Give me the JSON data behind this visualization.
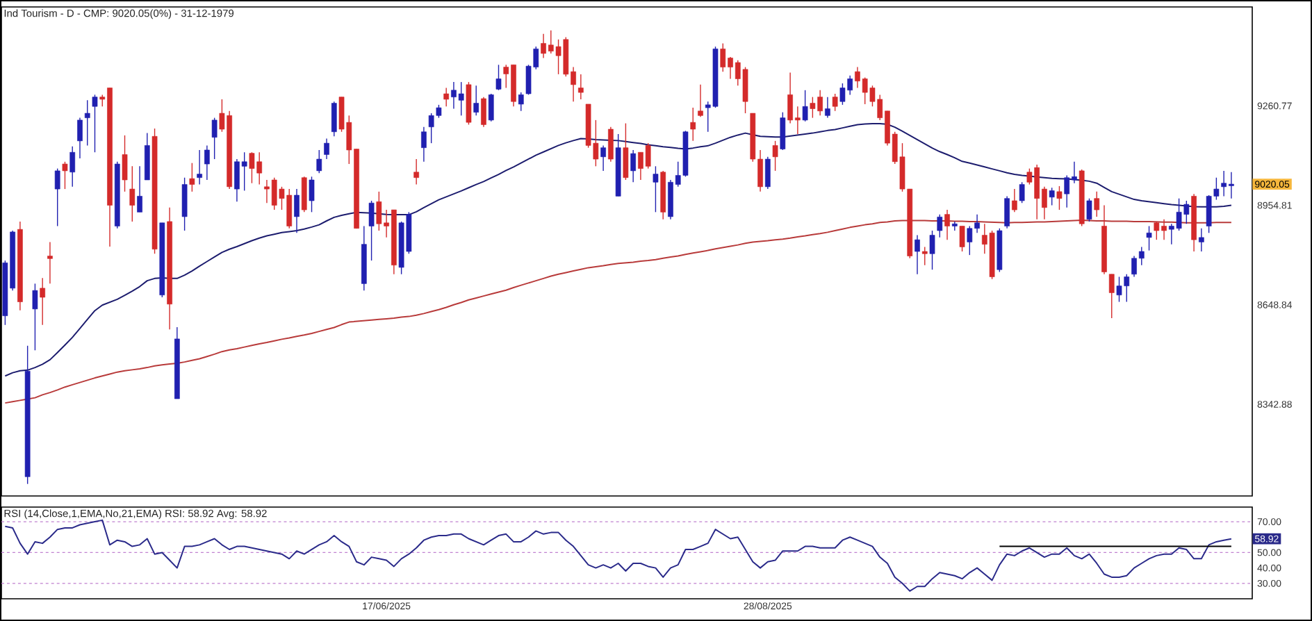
{
  "chart_data": [
    {
      "type": "candlestick",
      "title": "Ind Tourism - D - CMP: 9020.05(0%) - 31-12-1979",
      "categories": [
        null,
        null,
        null,
        null,
        null,
        null,
        null,
        null,
        null,
        null,
        null,
        null,
        null,
        null,
        null,
        null,
        null,
        null,
        null,
        null,
        null,
        null,
        null,
        null,
        null,
        null,
        null,
        null,
        null,
        null,
        null,
        null,
        null,
        null,
        null,
        null,
        null,
        null,
        null,
        null,
        null,
        null,
        null,
        null,
        null,
        null,
        null,
        null,
        null,
        null,
        null,
        null,
        null,
        null,
        null,
        null,
        null,
        null,
        null,
        null,
        null,
        null,
        null,
        null,
        null,
        null,
        null,
        null,
        null,
        null,
        null,
        null,
        null,
        null,
        null,
        null,
        null,
        null,
        null,
        null,
        null,
        null,
        null,
        null,
        null,
        null,
        null,
        null,
        null,
        null,
        null,
        null,
        null,
        null,
        null,
        null,
        null,
        null,
        null,
        null,
        null,
        null,
        null,
        null,
        null,
        null,
        null,
        null,
        null,
        null,
        null,
        null,
        null,
        null,
        null,
        null,
        null,
        null,
        null,
        null,
        null,
        null,
        null,
        null,
        null,
        null,
        null,
        null,
        null,
        null,
        null,
        null,
        null,
        null,
        null,
        null,
        null,
        null,
        null,
        null,
        null,
        null,
        null,
        null,
        null,
        null,
        null,
        null,
        null,
        null,
        null,
        null,
        null,
        null,
        null,
        null,
        null,
        null,
        null,
        null,
        null,
        null,
        null,
        null,
        null
      ],
      "ohlc": [
        [
          8615,
          8785,
          8587,
          8778
        ],
        [
          8700,
          8877,
          8693,
          8873
        ],
        [
          8881,
          8905,
          8632,
          8658
        ],
        [
          8120,
          8523,
          8098,
          8445
        ],
        [
          8636,
          8714,
          8509,
          8693
        ],
        [
          8700,
          8731,
          8587,
          8672
        ],
        [
          8799,
          8842,
          8714,
          8791
        ],
        [
          9005,
          9068,
          8891,
          9061
        ],
        [
          9082,
          9089,
          9005,
          9061
        ],
        [
          9057,
          9136,
          9012,
          9118
        ],
        [
          9153,
          9224,
          9099,
          9217
        ],
        [
          9224,
          9278,
          9139,
          9238
        ],
        [
          9259,
          9295,
          9118,
          9288
        ],
        [
          9288,
          9295,
          9259,
          9281
        ],
        [
          9316,
          9316,
          8828,
          8955
        ],
        [
          8891,
          9089,
          8884,
          9082
        ],
        [
          9111,
          9170,
          8997,
          9033
        ],
        [
          9005,
          9075,
          8905,
          8955
        ],
        [
          8934,
          9075,
          8934,
          8983
        ],
        [
          9033,
          9177,
          9033,
          9139
        ],
        [
          9167,
          9191,
          8806,
          8820
        ],
        [
          8679,
          8901,
          8672,
          8901
        ],
        [
          8905,
          8948,
          8573,
          8651
        ],
        [
          8360,
          8580,
          8360,
          8544
        ],
        [
          8920,
          9040,
          8877,
          9019
        ],
        [
          9037,
          9085,
          8997,
          9019
        ],
        [
          9040,
          9125,
          9019,
          9051
        ],
        [
          9082,
          9139,
          9033,
          9125
        ],
        [
          9164,
          9224,
          9097,
          9217
        ],
        [
          9238,
          9281,
          9181,
          9189
        ],
        [
          9231,
          9245,
          9005,
          9012
        ],
        [
          9005,
          9097,
          8966,
          9089
        ],
        [
          9075,
          9118,
          9000,
          9089
        ],
        [
          9115,
          9118,
          9023,
          9068
        ],
        [
          9089,
          9118,
          9019,
          9054
        ],
        [
          9012,
          9033,
          8962,
          9005
        ],
        [
          9033,
          9040,
          8941,
          8955
        ],
        [
          9005,
          9012,
          8941,
          8976
        ],
        [
          8986,
          9005,
          8884,
          8891
        ],
        [
          8920,
          9005,
          8870,
          8986
        ],
        [
          9040,
          9043,
          8934,
          8941
        ],
        [
          8969,
          9043,
          8934,
          9033
        ],
        [
          9061,
          9125,
          9054,
          9097
        ],
        [
          9111,
          9160,
          9097,
          9146
        ],
        [
          9181,
          9274,
          9167,
          9269
        ],
        [
          9288,
          9288,
          9181,
          9189
        ],
        [
          9210,
          9231,
          9082,
          9125
        ],
        [
          9128,
          9128,
          8884,
          8884
        ],
        [
          8714,
          8891,
          8693,
          8835
        ],
        [
          8891,
          8969,
          8785,
          8962
        ],
        [
          8966,
          8997,
          8877,
          8898
        ],
        [
          8901,
          8941,
          8856,
          8891
        ],
        [
          8941,
          8941,
          8743,
          8771
        ],
        [
          8764,
          8905,
          8743,
          8901
        ],
        [
          8813,
          8934,
          8806,
          8927
        ],
        [
          9057,
          9097,
          9019,
          9040
        ],
        [
          9132,
          9196,
          9089,
          9181
        ],
        [
          9196,
          9238,
          9146,
          9231
        ],
        [
          9231,
          9264,
          9224,
          9255
        ],
        [
          9298,
          9316,
          9259,
          9281
        ],
        [
          9288,
          9334,
          9252,
          9309
        ],
        [
          9278,
          9334,
          9231,
          9298
        ],
        [
          9326,
          9334,
          9203,
          9210
        ],
        [
          9241,
          9323,
          9231,
          9269
        ],
        [
          9283,
          9288,
          9196,
          9203
        ],
        [
          9217,
          9298,
          9213,
          9295
        ],
        [
          9312,
          9387,
          9309,
          9344
        ],
        [
          9380,
          9387,
          9316,
          9359
        ],
        [
          9387,
          9387,
          9259,
          9274
        ],
        [
          9266,
          9302,
          9245,
          9295
        ],
        [
          9298,
          9387,
          9295,
          9383
        ],
        [
          9380,
          9443,
          9373,
          9436
        ],
        [
          9453,
          9482,
          9408,
          9422
        ],
        [
          9448,
          9493,
          9422,
          9429
        ],
        [
          9443,
          9465,
          9358,
          9415
        ],
        [
          9465,
          9472,
          9351,
          9358
        ],
        [
          9366,
          9380,
          9274,
          9326
        ],
        [
          9316,
          9358,
          9281,
          9302
        ],
        [
          9266,
          9266,
          9132,
          9139
        ],
        [
          9146,
          9217,
          9075,
          9097
        ],
        [
          9104,
          9139,
          9061,
          9132
        ],
        [
          9189,
          9196,
          9089,
          9097
        ],
        [
          8983,
          9174,
          8983,
          9132
        ],
        [
          9132,
          9207,
          9033,
          9040
        ],
        [
          9061,
          9125,
          9026,
          9114
        ],
        [
          9118,
          9118,
          9033,
          9068
        ],
        [
          9139,
          9146,
          9068,
          9075
        ],
        [
          9026,
          9075,
          8934,
          9051
        ],
        [
          9057,
          9061,
          8912,
          8934
        ],
        [
          8920,
          9033,
          8912,
          9026
        ],
        [
          9019,
          9089,
          9012,
          9047
        ],
        [
          9047,
          9184,
          9043,
          9181
        ],
        [
          9210,
          9255,
          9153,
          9189
        ],
        [
          9245,
          9326,
          9227,
          9231
        ],
        [
          9255,
          9274,
          9181,
          9264
        ],
        [
          9259,
          9443,
          9255,
          9436
        ],
        [
          9436,
          9453,
          9366,
          9380
        ],
        [
          9408,
          9411,
          9344,
          9380
        ],
        [
          9394,
          9401,
          9323,
          9344
        ],
        [
          9373,
          9380,
          9238,
          9274
        ],
        [
          9238,
          9238,
          9089,
          9097
        ],
        [
          9097,
          9125,
          8997,
          9012
        ],
        [
          9012,
          9104,
          9005,
          9097
        ],
        [
          9139,
          9153,
          9061,
          9104
        ],
        [
          9128,
          9241,
          9125,
          9224
        ],
        [
          9295,
          9363,
          9207,
          9217
        ],
        [
          9224,
          9259,
          9174,
          9217
        ],
        [
          9217,
          9309,
          9213,
          9259
        ],
        [
          9269,
          9288,
          9224,
          9252
        ],
        [
          9288,
          9309,
          9231,
          9245
        ],
        [
          9231,
          9288,
          9224,
          9252
        ],
        [
          9288,
          9298,
          9245,
          9259
        ],
        [
          9274,
          9330,
          9264,
          9316
        ],
        [
          9309,
          9354,
          9295,
          9344
        ],
        [
          9366,
          9380,
          9316,
          9337
        ],
        [
          9344,
          9348,
          9266,
          9302
        ],
        [
          9316,
          9323,
          9259,
          9274
        ],
        [
          9281,
          9295,
          9217,
          9224
        ],
        [
          9245,
          9245,
          9139,
          9146
        ],
        [
          9174,
          9181,
          9082,
          9089
        ],
        [
          9104,
          9146,
          8997,
          9005
        ],
        [
          9005,
          9005,
          8792,
          8799
        ],
        [
          8813,
          8863,
          8743,
          8849
        ],
        [
          8813,
          8827,
          8771,
          8806
        ],
        [
          8806,
          8877,
          8757,
          8863
        ],
        [
          8877,
          8927,
          8856,
          8919
        ],
        [
          8927,
          8941,
          8849,
          8891
        ],
        [
          8891,
          8905,
          8877,
          8898
        ],
        [
          8891,
          8891,
          8813,
          8827
        ],
        [
          8842,
          8891,
          8802,
          8884
        ],
        [
          8884,
          8927,
          8870,
          8901
        ],
        [
          8863,
          8898,
          8806,
          8835
        ],
        [
          8870,
          8877,
          8728,
          8735
        ],
        [
          8757,
          8884,
          8750,
          8877
        ],
        [
          8891,
          8983,
          8884,
          8976
        ],
        [
          8969,
          9005,
          8934,
          8941
        ],
        [
          8969,
          9026,
          8962,
          9019
        ],
        [
          9057,
          9068,
          9019,
          9026
        ],
        [
          9071,
          9080,
          8912,
          8976
        ],
        [
          9005,
          9012,
          8912,
          8948
        ],
        [
          8980,
          9009,
          8955,
          9000
        ],
        [
          8997,
          9014,
          8941,
          8976
        ],
        [
          8990,
          9047,
          8948,
          9040
        ],
        [
          9033,
          9089,
          9023,
          9043
        ],
        [
          9061,
          9065,
          8891,
          8898
        ],
        [
          8912,
          8976,
          8905,
          8969
        ],
        [
          8976,
          8997,
          8920,
          8941
        ],
        [
          8891,
          8955,
          8743,
          8750
        ],
        [
          8743,
          8743,
          8608,
          8686
        ],
        [
          8679,
          8735,
          8658,
          8707
        ],
        [
          8707,
          8743,
          8658,
          8735
        ],
        [
          8743,
          8799,
          8735,
          8792
        ],
        [
          8792,
          8827,
          8771,
          8813
        ],
        [
          8856,
          8891,
          8816,
          8870
        ],
        [
          8901,
          8905,
          8849,
          8877
        ],
        [
          8891,
          8912,
          8849,
          8877
        ],
        [
          8881,
          8898,
          8835,
          8891
        ],
        [
          8884,
          8976,
          8877,
          8934
        ],
        [
          8927,
          8969,
          8898,
          8958
        ],
        [
          8983,
          8990,
          8813,
          8849
        ],
        [
          8842,
          8884,
          8813,
          8856
        ],
        [
          8891,
          8986,
          8870,
          8983
        ],
        [
          8983,
          9040,
          8972,
          9005
        ],
        [
          9012,
          9061,
          8983,
          9023
        ],
        [
          9015,
          9057,
          8976,
          9020.05
        ]
      ],
      "colors": [
        "#2020b0",
        "#2020b0",
        "#d42a2a",
        "#2020b0",
        "#2020b0",
        "#d42a2a",
        "#d42a2a",
        "#2020b0",
        "#d42a2a",
        "#2020b0",
        "#2020b0",
        "#2020b0",
        "#2020b0",
        "#d42a2a",
        "#d42a2a",
        "#2020b0",
        "#d42a2a",
        "#d42a2a",
        "#2020b0",
        "#2020b0",
        "#d42a2a",
        "#2020b0",
        "#d42a2a",
        "#2020b0",
        "#2020b0",
        "#d42a2a",
        "#2020b0",
        "#2020b0",
        "#2020b0",
        "#d42a2a",
        "#d42a2a",
        "#2020b0",
        "#2020b0",
        "#d42a2a",
        "#d42a2a",
        "#d42a2a",
        "#d42a2a",
        "#d42a2a",
        "#d42a2a",
        "#2020b0",
        "#d42a2a",
        "#2020b0",
        "#2020b0",
        "#2020b0",
        "#2020b0",
        "#d42a2a",
        "#d42a2a",
        "#d42a2a",
        "#2020b0",
        "#2020b0",
        "#d42a2a",
        "#d42a2a",
        "#d42a2a",
        "#2020b0",
        "#2020b0",
        "#d42a2a",
        "#2020b0",
        "#2020b0",
        "#2020b0",
        "#d42a2a",
        "#2020b0",
        "#2020b0",
        "#d42a2a",
        "#2020b0",
        "#d42a2a",
        "#2020b0",
        "#2020b0",
        "#d42a2a",
        "#d42a2a",
        "#2020b0",
        "#2020b0",
        "#2020b0",
        "#d42a2a",
        "#d42a2a",
        "#d42a2a",
        "#d42a2a",
        "#d42a2a",
        "#d42a2a",
        "#d42a2a",
        "#d42a2a",
        "#2020b0",
        "#d42a2a",
        "#2020b0",
        "#d42a2a",
        "#2020b0",
        "#d42a2a",
        "#d42a2a",
        "#2020b0",
        "#d42a2a",
        "#2020b0",
        "#2020b0",
        "#2020b0",
        "#d42a2a",
        "#d42a2a",
        "#2020b0",
        "#2020b0",
        "#d42a2a",
        "#d42a2a",
        "#d42a2a",
        "#d42a2a",
        "#d42a2a",
        "#d42a2a",
        "#2020b0",
        "#d42a2a",
        "#2020b0",
        "#d42a2a",
        "#d42a2a",
        "#2020b0",
        "#d42a2a",
        "#d42a2a",
        "#2020b0",
        "#d42a2a",
        "#2020b0",
        "#2020b0",
        "#d42a2a",
        "#d42a2a",
        "#d42a2a",
        "#d42a2a",
        "#d42a2a",
        "#d42a2a",
        "#d42a2a",
        "#d42a2a",
        "#2020b0",
        "#d42a2a",
        "#2020b0",
        "#2020b0",
        "#d42a2a",
        "#2020b0",
        "#d42a2a",
        "#2020b0",
        "#2020b0",
        "#d42a2a",
        "#d42a2a",
        "#2020b0",
        "#2020b0",
        "#d42a2a",
        "#2020b0",
        "#d42a2a",
        "#d42a2a",
        "#d42a2a",
        "#2020b0",
        "#d42a2a",
        "#2020b0",
        "#2020b0",
        "#d42a2a",
        "#2020b0",
        "#d42a2a",
        "#d42a2a",
        "#d42a2a",
        "#2020b0",
        "#2020b0",
        "#2020b0",
        "#2020b0",
        "#2020b0",
        "#d42a2a",
        "#d42a2a",
        "#2020b0",
        "#2020b0",
        "#2020b0",
        "#d42a2a",
        "#2020b0",
        "#2020b0",
        "#2020b0",
        "#2020b0",
        "#2020b0"
      ],
      "series": [
        {
          "type": "line",
          "color": "#1c1c6e",
          "values": [
            8430,
            8440,
            8446,
            8448,
            8456,
            8466,
            8480,
            8502,
            8525,
            8549,
            8576,
            8604,
            8631,
            8648,
            8657,
            8666,
            8678,
            8691,
            8705,
            8723,
            8730,
            8732,
            8730,
            8730,
            8740,
            8753,
            8768,
            8782,
            8796,
            8810,
            8820,
            8828,
            8837,
            8846,
            8854,
            8861,
            8866,
            8871,
            8874,
            8877,
            8882,
            8888,
            8895,
            8907,
            8918,
            8924,
            8929,
            8933,
            8932,
            8931,
            8929,
            8927,
            8926,
            8926,
            8926,
            8935,
            8948,
            8960,
            8972,
            8981,
            8990,
            8999,
            9009,
            9019,
            9028,
            9039,
            9050,
            9062,
            9073,
            9085,
            9097,
            9109,
            9119,
            9129,
            9139,
            9147,
            9154,
            9160,
            9159,
            9157,
            9156,
            9155,
            9154,
            9151,
            9148,
            9145,
            9141,
            9138,
            9135,
            9133,
            9130,
            9128,
            9131,
            9135,
            9138,
            9146,
            9155,
            9164,
            9171,
            9177,
            9172,
            9167,
            9166,
            9165,
            9165,
            9168,
            9171,
            9174,
            9177,
            9181,
            9185,
            9188,
            9193,
            9198,
            9203,
            9205,
            9206,
            9206,
            9204,
            9195,
            9183,
            9170,
            9157,
            9144,
            9131,
            9120,
            9111,
            9101,
            9090,
            9085,
            9079,
            9073,
            9067,
            9061,
            9055,
            9050,
            9047,
            9045,
            9042,
            9040,
            9038,
            9037,
            9036,
            9034,
            9032,
            9029,
            9023,
            9010,
            8997,
            8989,
            8981,
            8973,
            8969,
            8966,
            8963,
            8960,
            8957,
            8955,
            8953,
            8951,
            8950,
            8950,
            8950,
            8952,
            8955
          ]
        },
        {
          "type": "line",
          "color": "#b83a3a",
          "values": [
            8347,
            8351,
            8355,
            8359,
            8363,
            8372,
            8379,
            8387,
            8396,
            8403,
            8410,
            8417,
            8424,
            8430,
            8436,
            8442,
            8446,
            8449,
            8452,
            8456,
            8461,
            8464,
            8467,
            8469,
            8473,
            8478,
            8483,
            8490,
            8497,
            8505,
            8510,
            8514,
            8519,
            8524,
            8529,
            8533,
            8538,
            8543,
            8547,
            8552,
            8556,
            8561,
            8567,
            8573,
            8579,
            8588,
            8596,
            8598,
            8600,
            8602,
            8604,
            8606,
            8608,
            8611,
            8613,
            8617,
            8622,
            8628,
            8634,
            8641,
            8649,
            8656,
            8664,
            8670,
            8676,
            8682,
            8688,
            8694,
            8702,
            8709,
            8716,
            8723,
            8730,
            8737,
            8743,
            8748,
            8753,
            8758,
            8763,
            8766,
            8769,
            8773,
            8776,
            8778,
            8780,
            8783,
            8785,
            8788,
            8792,
            8796,
            8799,
            8804,
            8808,
            8812,
            8816,
            8821,
            8825,
            8829,
            8833,
            8838,
            8842,
            8844,
            8846,
            8849,
            8851,
            8854,
            8858,
            8861,
            8865,
            8868,
            8872,
            8877,
            8882,
            8887,
            8891,
            8895,
            8898,
            8902,
            8904,
            8907,
            8908,
            8908,
            8908,
            8908,
            8907,
            8907,
            8907,
            8906,
            8906,
            8905,
            8905,
            8904,
            8903,
            8902,
            8901,
            8902,
            8902,
            8903,
            8904,
            8904,
            8905,
            8906,
            8907,
            8908,
            8909,
            8908,
            8907,
            8907,
            8906,
            8906,
            8906,
            8905,
            8905,
            8905,
            8904,
            8903,
            8903,
            8902,
            8901,
            8901,
            8901,
            8901,
            8902,
            8902,
            8902
          ]
        }
      ],
      "ylim": [
        8061,
        9565
      ],
      "yticks": [
        9260.77,
        8954.81,
        8648.84,
        8342.88
      ],
      "tick_labels": "y",
      "annotations": [
        "9020.05"
      ]
    },
    {
      "type": "line",
      "title": "RSI (14,Close,1,EMA,No,21,EMA) RSI: 58.92 Avg: 58.92",
      "categories": [
        null,
        null,
        null,
        null,
        null,
        null,
        null,
        null,
        null,
        null,
        null,
        null,
        null,
        null,
        null,
        null,
        null,
        null,
        null,
        null,
        null,
        null,
        null,
        null,
        null,
        null,
        null,
        null,
        null,
        null,
        null,
        null,
        null,
        null,
        null,
        null,
        null,
        null,
        null,
        null,
        null,
        null,
        null,
        null,
        null,
        null,
        null,
        null,
        null,
        null,
        null,
        "17/06/2025",
        null,
        null,
        null,
        null,
        null,
        null,
        null,
        null,
        null,
        null,
        null,
        null,
        null,
        null,
        null,
        null,
        null,
        null,
        null,
        null,
        null,
        null,
        null,
        null,
        null,
        null,
        null,
        null,
        null,
        null,
        null,
        null,
        null,
        null,
        null,
        null,
        null,
        null,
        null,
        null,
        null,
        null,
        null,
        null,
        null,
        null,
        null,
        null,
        null,
        null,
        "28/08/2025",
        null,
        null,
        null,
        null,
        null,
        null,
        null,
        null,
        null,
        null,
        null,
        null,
        null,
        null,
        null,
        null,
        null,
        null,
        null,
        null,
        null,
        null,
        null,
        null,
        null,
        null,
        null,
        null,
        null,
        null,
        null,
        null,
        null,
        null,
        null,
        null,
        null,
        null,
        null,
        null,
        null,
        null,
        null,
        null,
        null,
        null,
        null,
        null,
        null,
        null,
        null,
        null,
        null,
        null,
        null,
        null,
        null,
        null,
        null,
        null,
        null,
        null
      ],
      "series": [
        {
          "color": "#2a2a8a",
          "values": [
            67,
            66,
            56,
            49,
            57,
            56,
            60,
            65,
            66,
            66,
            68,
            69,
            70,
            71,
            55,
            58,
            57,
            54,
            55,
            59,
            49,
            50,
            45,
            40,
            54,
            54,
            55,
            57,
            59,
            55,
            52,
            54,
            54,
            53,
            52,
            51,
            50,
            49,
            46,
            51,
            49,
            52,
            55,
            57,
            61,
            57,
            54,
            44,
            42,
            47,
            46,
            45,
            41,
            46,
            49,
            53,
            58,
            60,
            61,
            61,
            62,
            62,
            59,
            57,
            55,
            58,
            61,
            62,
            57,
            57,
            60,
            64,
            62,
            63,
            63,
            58,
            54,
            48,
            42,
            40,
            42,
            40,
            43,
            38,
            43,
            43,
            41,
            40,
            34,
            40,
            42,
            52,
            52,
            54,
            56,
            65,
            62,
            59,
            60,
            52,
            44,
            40,
            44,
            45,
            51,
            51,
            51,
            54,
            54,
            53,
            53,
            53,
            58,
            60,
            58,
            56,
            54,
            47,
            43,
            34,
            30,
            25,
            28,
            28,
            33,
            37,
            36,
            35,
            33,
            37,
            40,
            36,
            32,
            42,
            49,
            48,
            51,
            53,
            50,
            47,
            49,
            49,
            53,
            48,
            46,
            49,
            43,
            36,
            34,
            34,
            35,
            40,
            43,
            46,
            48,
            49,
            49,
            53,
            52,
            46,
            46,
            55,
            57,
            58,
            58.92
          ]
        },
        {
          "color": "#000000",
          "values": [
            null,
            null,
            null,
            null,
            null,
            null,
            null,
            null,
            null,
            null,
            null,
            null,
            null,
            null,
            null,
            null,
            null,
            null,
            null,
            null,
            null,
            null,
            null,
            null,
            null,
            null,
            null,
            null,
            null,
            null,
            null,
            null,
            null,
            null,
            null,
            null,
            null,
            null,
            null,
            null,
            null,
            null,
            null,
            null,
            null,
            null,
            null,
            null,
            null,
            null,
            null,
            null,
            null,
            null,
            null,
            null,
            null,
            null,
            null,
            null,
            null,
            null,
            null,
            null,
            null,
            null,
            null,
            null,
            null,
            null,
            null,
            null,
            null,
            null,
            null,
            null,
            null,
            null,
            null,
            null,
            null,
            null,
            null,
            null,
            null,
            null,
            null,
            null,
            null,
            null,
            null,
            null,
            null,
            null,
            null,
            null,
            null,
            null,
            null,
            null,
            null,
            null,
            null,
            null,
            null,
            null,
            null,
            null,
            null,
            null,
            null,
            null,
            null,
            null,
            null,
            null,
            null,
            null,
            null,
            null,
            null,
            null,
            null,
            null,
            null,
            null,
            null,
            null,
            null,
            null,
            null,
            null,
            null,
            54,
            54,
            54,
            54,
            54,
            54,
            54,
            54,
            54,
            54,
            54,
            54,
            54,
            54,
            54,
            54,
            54,
            54,
            54,
            54,
            54,
            54,
            54,
            54,
            54,
            54,
            54,
            54,
            54,
            54,
            54,
            54
          ]
        }
      ],
      "ylim": [
        20,
        79.5
      ],
      "yticks": [
        {
          "value": 70,
          "label": "70.00"
        },
        {
          "value": 50,
          "label": "50.00"
        },
        {
          "value": 40,
          "label": "40.00"
        },
        {
          "value": 30,
          "label": "30.00"
        }
      ],
      "ref_lines": [
        {
          "axis": "y",
          "value": 70,
          "color": "#c080d0",
          "line_style": "dashed"
        },
        {
          "axis": "y",
          "value": 50,
          "color": "#c080d0",
          "line_style": "dashed"
        },
        {
          "axis": "y",
          "value": 30,
          "color": "#c080d0",
          "line_style": "dashed"
        }
      ],
      "annotations": [
        "58.92"
      ]
    }
  ]
}
